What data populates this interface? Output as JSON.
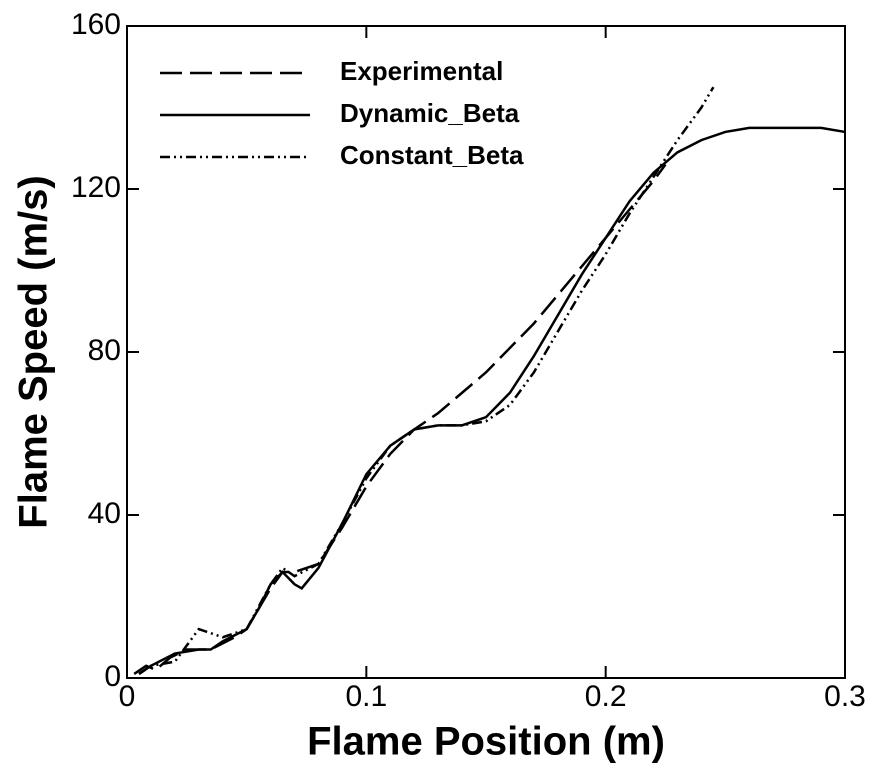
{
  "chart_data": {
    "type": "line",
    "xlabel": "Flame Position (m)",
    "ylabel": "Flame Speed (m/s)",
    "xlim": [
      0,
      0.3
    ],
    "ylim": [
      0,
      160
    ],
    "xticks": [
      0,
      0.1,
      0.2,
      0.3
    ],
    "yticks": [
      0,
      40,
      80,
      120,
      160
    ],
    "legend": "upper left",
    "series": [
      {
        "name": "Experimental",
        "color": "#000000",
        "dash": "dashed",
        "x": [
          0.003,
          0.008,
          0.012,
          0.018,
          0.025,
          0.035,
          0.045,
          0.05,
          0.06,
          0.065,
          0.07,
          0.08,
          0.09,
          0.1,
          0.11,
          0.12,
          0.13,
          0.14,
          0.15,
          0.16,
          0.17,
          0.18,
          0.19,
          0.2,
          0.21,
          0.22,
          0.225
        ],
        "values": [
          1,
          3,
          2,
          5,
          7,
          7,
          10,
          12,
          22,
          26,
          26,
          28,
          37,
          47,
          55,
          61,
          65,
          70,
          75,
          81,
          87,
          94,
          101,
          108,
          115,
          122,
          126
        ]
      },
      {
        "name": "Dynamic_Beta",
        "color": "#000000",
        "dash": "solid",
        "x": [
          0.005,
          0.01,
          0.02,
          0.03,
          0.035,
          0.04,
          0.05,
          0.055,
          0.06,
          0.065,
          0.07,
          0.073,
          0.08,
          0.09,
          0.1,
          0.11,
          0.12,
          0.13,
          0.14,
          0.15,
          0.16,
          0.17,
          0.18,
          0.19,
          0.2,
          0.21,
          0.22,
          0.23,
          0.24,
          0.25,
          0.26,
          0.27,
          0.28,
          0.29,
          0.3
        ],
        "values": [
          1,
          3,
          6,
          7,
          7,
          9,
          12,
          17,
          23,
          26,
          23,
          22,
          27,
          38,
          50,
          57,
          61,
          62,
          62,
          64,
          70,
          79,
          89,
          99,
          108,
          117,
          124,
          129,
          132,
          134,
          135,
          135,
          135,
          135,
          134
        ]
      },
      {
        "name": "Constant_Beta",
        "color": "#000000",
        "dash": "dash-dot-dot",
        "x": [
          0.005,
          0.01,
          0.02,
          0.025,
          0.03,
          0.04,
          0.05,
          0.06,
          0.065,
          0.07,
          0.08,
          0.09,
          0.1,
          0.11,
          0.12,
          0.13,
          0.14,
          0.15,
          0.16,
          0.17,
          0.18,
          0.19,
          0.2,
          0.21,
          0.22,
          0.23,
          0.24,
          0.245
        ],
        "values": [
          1,
          3,
          4,
          8,
          12,
          10,
          12,
          23,
          27,
          25,
          28,
          38,
          49,
          57,
          61,
          62,
          62,
          63,
          67,
          75,
          85,
          95,
          104,
          114,
          123,
          132,
          140,
          145
        ]
      }
    ]
  }
}
